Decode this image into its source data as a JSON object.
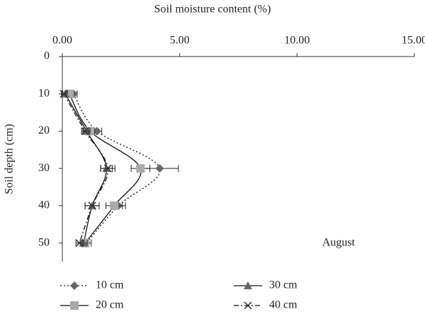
{
  "chart_data": {
    "type": "line",
    "x_label": "Soil moisture content (%)",
    "y_label": "Soil depth (cm)",
    "annotation": "August",
    "y": [
      10,
      20,
      30,
      40,
      50
    ],
    "xlim": [
      0,
      15
    ],
    "xticks": [
      {
        "value": 0,
        "label": "0.00"
      },
      {
        "value": 5,
        "label": "5.00"
      },
      {
        "value": 10,
        "label": "10.00"
      },
      {
        "value": 15,
        "label": "15.00"
      }
    ],
    "ylim": [
      0,
      55
    ],
    "yticks": [
      0,
      10,
      20,
      30,
      40,
      50
    ],
    "y_inverted": true,
    "x_axis_position": "top",
    "series": [
      {
        "name": "10 cm",
        "color": "#666666",
        "marker": "diamond",
        "line": "dotted",
        "values": [
          0.48,
          1.48,
          4.15,
          2.39,
          1.03
        ],
        "errors": [
          0.15,
          0.2,
          0.8,
          0.3,
          0.2
        ]
      },
      {
        "name": "20 cm",
        "color": "#aaaaaa",
        "marker": "square",
        "line": "solid",
        "values": [
          0.3,
          1.18,
          3.33,
          2.21,
          0.97
        ],
        "errors": [
          0.1,
          0.2,
          0.4,
          0.35,
          0.15
        ]
      },
      {
        "name": "30 cm",
        "color": "#666666",
        "marker": "triangle",
        "line": "solid",
        "values": [
          0.12,
          1.03,
          1.88,
          1.27,
          0.91
        ],
        "errors": [
          0.1,
          0.15,
          0.25,
          0.3,
          0.15
        ]
      },
      {
        "name": "40 cm",
        "color": "#333333",
        "marker": "x",
        "line": "dashdot",
        "values": [
          0.06,
          0.97,
          1.94,
          1.27,
          0.73
        ],
        "errors": [
          0.1,
          0.15,
          0.3,
          0.3,
          0.15
        ]
      }
    ]
  }
}
